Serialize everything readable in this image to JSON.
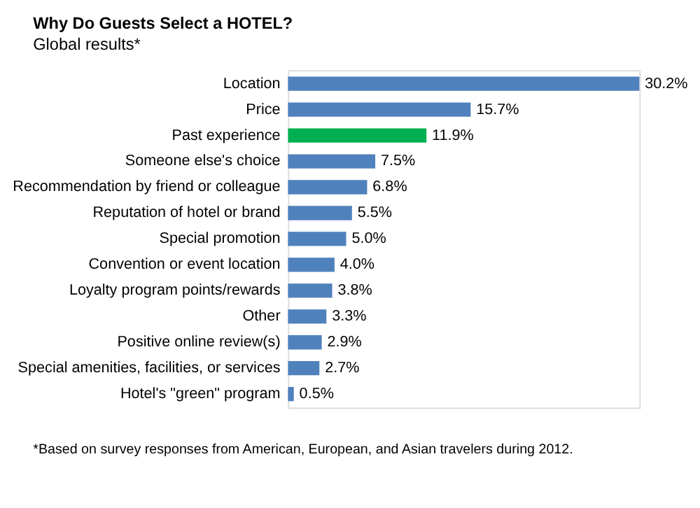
{
  "chart_data": {
    "type": "bar",
    "orientation": "horizontal",
    "title": "Why Do Guests Select a HOTEL?",
    "subtitle": "Global results*",
    "categories": [
      "Location",
      "Price",
      "Past experience",
      "Someone else's choice",
      "Recommendation by friend or colleague",
      "Reputation of hotel or brand",
      "Special promotion",
      "Convention or event location",
      "Loyalty program points/rewards",
      "Other",
      "Positive online review(s)",
      "Special amenities, facilities, or services",
      "Hotel's \"green\" program"
    ],
    "values": [
      30.2,
      15.7,
      11.9,
      7.5,
      6.8,
      5.5,
      5.0,
      4.0,
      3.8,
      3.3,
      2.9,
      2.7,
      0.5
    ],
    "colors": [
      "#4f81bd",
      "#4f81bd",
      "#00b050",
      "#4f81bd",
      "#4f81bd",
      "#4f81bd",
      "#4f81bd",
      "#4f81bd",
      "#4f81bd",
      "#4f81bd",
      "#4f81bd",
      "#4f81bd",
      "#4f81bd"
    ],
    "value_labels": [
      "30.2%",
      "15.7%",
      "11.9%",
      "7.5%",
      "6.8%",
      "5.5%",
      "5.0%",
      "4.0%",
      "3.8%",
      "3.3%",
      "2.9%",
      "2.7%",
      "0.5%"
    ],
    "annotations": [
      "*Based on survey responses from American, European, and Asian travelers during 2012."
    ]
  }
}
